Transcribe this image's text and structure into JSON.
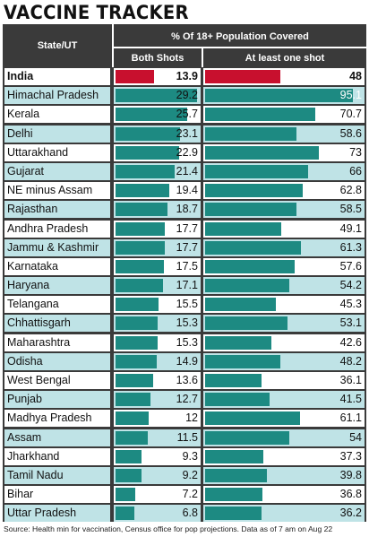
{
  "title": "VACCINE TRACKER",
  "source": "Source: Health min for vaccination, Census office for pop projections. Data as of 7 am on Aug 22",
  "colors": {
    "bar": "#1d8a82",
    "highlight_bar": "#c8102e",
    "row_tint": "#bfe3e6",
    "header_bg": "#3a3a3a"
  },
  "chart_data": {
    "type": "table",
    "header_state": "State/UT",
    "header_group": "% Of 18+ Population Covered",
    "col_both": "Both Shots",
    "col_one": "At least one shot",
    "xlim_both": [
      0,
      30
    ],
    "xlim_one": [
      0,
      100
    ],
    "rows": [
      {
        "state": "India",
        "both": "13.9",
        "one": "48"
      },
      {
        "state": "Himachal Pradesh",
        "both": "29.2",
        "one": "95.1"
      },
      {
        "state": "Kerala",
        "both": "25.7",
        "one": "70.7"
      },
      {
        "state": "Delhi",
        "both": "23.1",
        "one": "58.6"
      },
      {
        "state": "Uttarakhand",
        "both": "22.9",
        "one": "73"
      },
      {
        "state": "Gujarat",
        "both": "21.4",
        "one": "66"
      },
      {
        "state": "NE minus Assam",
        "both": "19.4",
        "one": "62.8"
      },
      {
        "state": "Rajasthan",
        "both": "18.7",
        "one": "58.5"
      },
      {
        "state": "Andhra Pradesh",
        "both": "17.7",
        "one": "49.1"
      },
      {
        "state": "Jammu & Kashmir",
        "both": "17.7",
        "one": "61.3"
      },
      {
        "state": "Karnataka",
        "both": "17.5",
        "one": "57.6"
      },
      {
        "state": "Haryana",
        "both": "17.1",
        "one": "54.2"
      },
      {
        "state": "Telangana",
        "both": "15.5",
        "one": "45.3"
      },
      {
        "state": "Chhattisgarh",
        "both": "15.3",
        "one": "53.1"
      },
      {
        "state": "Maharashtra",
        "both": "15.3",
        "one": "42.6"
      },
      {
        "state": "Odisha",
        "both": "14.9",
        "one": "48.2"
      },
      {
        "state": "West Bengal",
        "both": "13.6",
        "one": "36.1"
      },
      {
        "state": "Punjab",
        "both": "12.7",
        "one": "41.5"
      },
      {
        "state": "Madhya Pradesh",
        "both": "12",
        "one": "61.1"
      },
      {
        "state": "Assam",
        "both": "11.5",
        "one": "54"
      },
      {
        "state": "Jharkhand",
        "both": "9.3",
        "one": "37.3"
      },
      {
        "state": "Tamil Nadu",
        "both": "9.2",
        "one": "39.8"
      },
      {
        "state": "Bihar",
        "both": "7.2",
        "one": "36.8"
      },
      {
        "state": "Uttar Pradesh",
        "both": "6.8",
        "one": "36.2"
      }
    ]
  }
}
